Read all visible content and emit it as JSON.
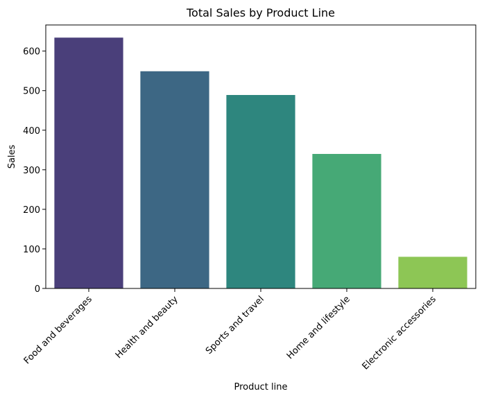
{
  "chart_data": {
    "type": "bar",
    "title": "Total Sales by Product Line",
    "xlabel": "Product line",
    "ylabel": "Sales",
    "categories": [
      "Food and beverages",
      "Health and beauty",
      "Sports and travel",
      "Home and lifestyle",
      "Electronic accessories"
    ],
    "values": [
      634,
      549,
      489,
      340,
      80
    ],
    "colors": [
      "#4a3f7a",
      "#3d6784",
      "#2e867e",
      "#46a976",
      "#8dc655"
    ],
    "ylim": [
      0,
      666
    ],
    "yticks": [
      0,
      100,
      200,
      300,
      400,
      500,
      600
    ],
    "grid": false,
    "legend": false
  }
}
